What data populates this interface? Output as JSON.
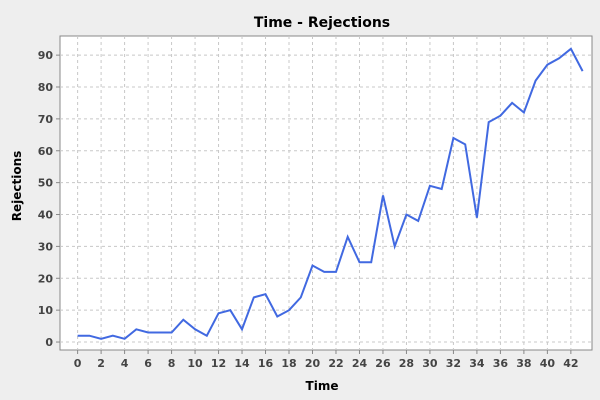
{
  "chart_data": {
    "type": "line",
    "title": "Time - Rejections",
    "xlabel": "Time",
    "ylabel": "Rejections",
    "xlim": [
      -1.5,
      43.8
    ],
    "ylim": [
      -2.5,
      96
    ],
    "xticks": [
      0,
      2,
      4,
      6,
      8,
      10,
      12,
      14,
      16,
      18,
      20,
      22,
      24,
      26,
      28,
      30,
      32,
      34,
      36,
      38,
      40,
      42
    ],
    "yticks": [
      0,
      10,
      20,
      30,
      40,
      50,
      60,
      70,
      80,
      90
    ],
    "grid": true,
    "series": [
      {
        "color": "#4169e1",
        "x": [
          0,
          1,
          2,
          3,
          4,
          5,
          6,
          7,
          8,
          9,
          10,
          11,
          12,
          13,
          14,
          15,
          16,
          17,
          18,
          19,
          20,
          21,
          22,
          23,
          24,
          25,
          26,
          27,
          28,
          29,
          30,
          31,
          32,
          33,
          34,
          35,
          36,
          37,
          38,
          39,
          40,
          41,
          42,
          43
        ],
        "y": [
          2,
          2,
          1,
          2,
          1,
          4,
          3,
          3,
          3,
          7,
          4,
          2,
          9,
          10,
          4,
          14,
          15,
          8,
          10,
          14,
          24,
          22,
          22,
          33,
          25,
          25,
          46,
          30,
          40,
          38,
          49,
          48,
          64,
          62,
          39,
          69,
          71,
          75,
          72,
          82,
          87,
          89,
          92,
          85
        ]
      }
    ]
  },
  "colors": {
    "background": "#eeeeee",
    "plot_background": "#ffffff",
    "gridline": "#c8c8c8",
    "line": "#4169e1"
  }
}
